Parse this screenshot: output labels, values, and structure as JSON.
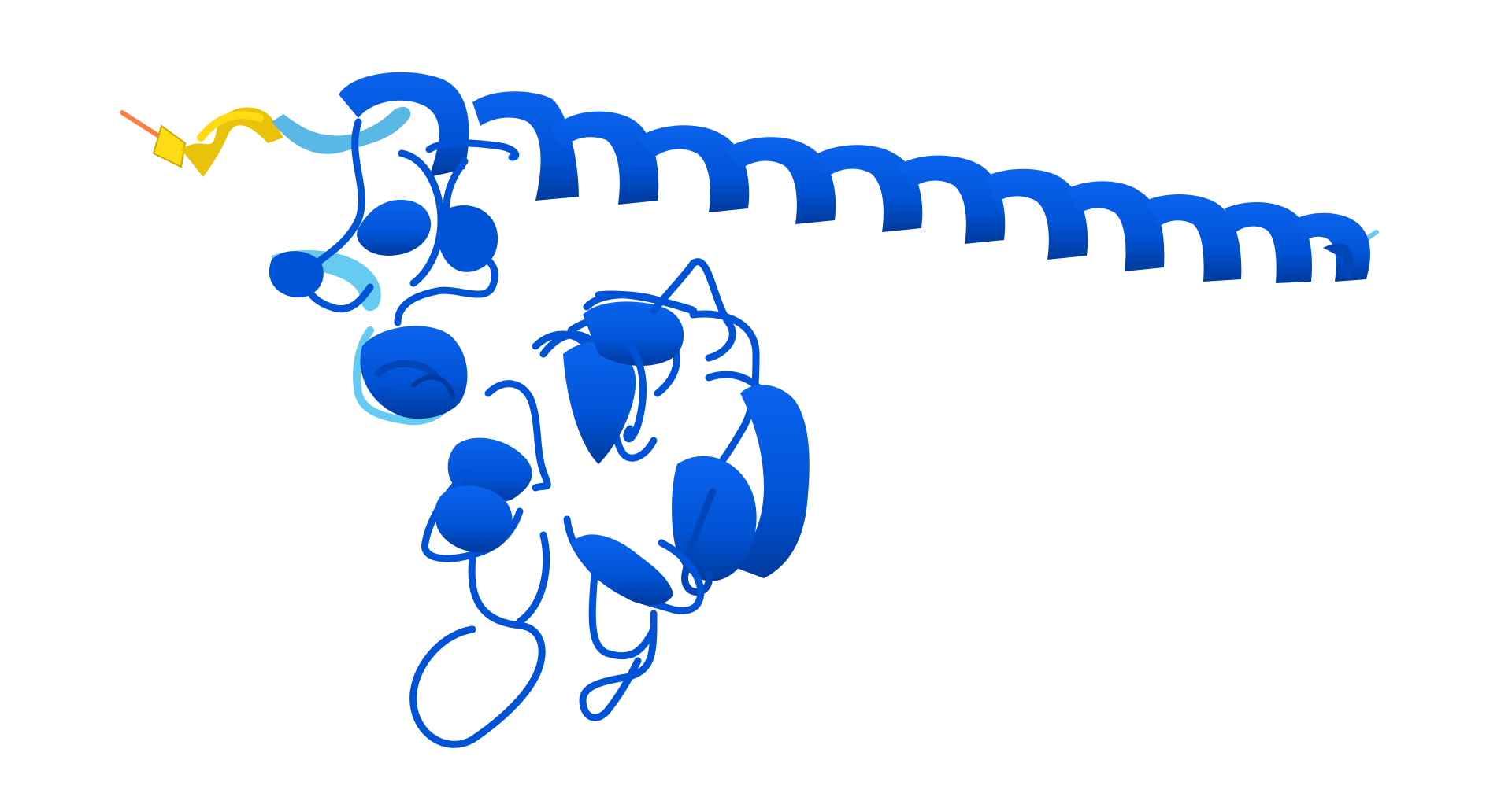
{
  "structure": {
    "render_style": "cartoon",
    "background": "#ffffff",
    "confidence_colors": {
      "very_high": "#0053d6",
      "high": "#65cbf3",
      "low": "#ffdb13",
      "very_low": "#ff7d45"
    },
    "icons": [
      "protein-ribbon-icon"
    ]
  }
}
